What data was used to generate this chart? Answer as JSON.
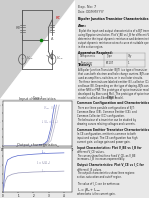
{
  "page_bg": "#e8e8e8",
  "top_left_bg": "#ffffff",
  "circuit_color": "#555555",
  "text_color": "#222222",
  "input_plot": {
    "title": "Input characteristics",
    "xlabel": "V_BE",
    "ylabel": "I_B",
    "curves": [
      {
        "x": [
          0,
          0.3,
          0.5,
          0.6,
          0.65,
          0.7,
          0.72,
          0.75
        ],
        "y": [
          0,
          0,
          0.005,
          0.04,
          0.12,
          0.45,
          0.7,
          1.0
        ],
        "color": "#5566cc",
        "label": "I_B"
      },
      {
        "x": [
          0,
          0.32,
          0.52,
          0.62,
          0.67,
          0.72,
          0.75,
          0.78
        ],
        "y": [
          0,
          0,
          0.005,
          0.04,
          0.12,
          0.45,
          0.7,
          1.0
        ],
        "color": "#9999bb",
        "label": "V_CE1"
      },
      {
        "x": [
          0,
          0.35,
          0.55,
          0.65,
          0.7,
          0.75,
          0.78,
          0.82
        ],
        "y": [
          0,
          0,
          0.005,
          0.04,
          0.12,
          0.45,
          0.7,
          1.0
        ],
        "color": "#bbbbcc",
        "label": "V_CE2"
      }
    ],
    "label_vce1": "V_CE1",
    "label_vce2": "V_CE2",
    "label_ib": "I_B(V_CE=V_CE1)",
    "label_vbe": "V_BE",
    "xlim": [
      0,
      1.0
    ],
    "ylim": [
      0,
      1.1
    ]
  },
  "output_plot": {
    "title": "Output characteristics",
    "xlabel": "V_CE",
    "ylabel": "I_C",
    "curves": [
      {
        "x": [
          0,
          0.15,
          0.3,
          0.6,
          1.0,
          2.0,
          3.0,
          4.0
        ],
        "y": [
          0,
          0.55,
          0.72,
          0.78,
          0.82,
          0.85,
          0.87,
          0.88
        ],
        "color": "#5566cc",
        "label": "I_B1"
      },
      {
        "x": [
          0,
          0.15,
          0.3,
          0.6,
          1.0,
          2.0,
          3.0,
          4.0
        ],
        "y": [
          0,
          0.25,
          0.35,
          0.4,
          0.43,
          0.45,
          0.46,
          0.47
        ],
        "color": "#9999bb",
        "label": "I_B2"
      }
    ],
    "label_ib1": "I_B1",
    "label_ib2": "I_B2",
    "label_ic": "I_C=f_g(V_CE)",
    "xlim": [
      0,
      4.5
    ],
    "ylim": [
      0,
      1.0
    ]
  }
}
